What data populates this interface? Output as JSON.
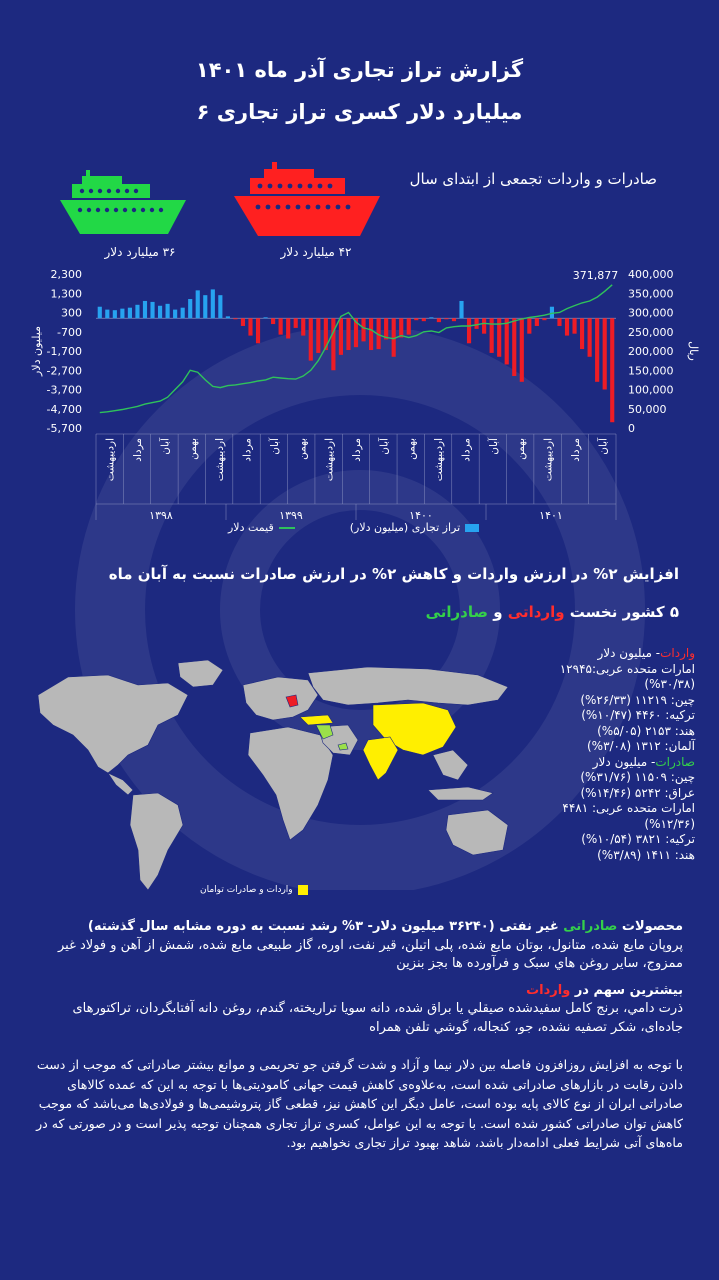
{
  "header": {
    "title": "گزارش تراز تجاری آذر ماه ۱۴۰۱",
    "subtitle": "۶ میلیارد دلار کسری تراز تجاری"
  },
  "cumulative": {
    "title": "صادرات و واردات تجمعی از ابتدای سال",
    "import_label": "۴۲ میلیارد دلار",
    "export_label": "۳۶ میلیارد دلار",
    "import_color": "#ff2020",
    "export_color": "#22d846"
  },
  "chart_data": {
    "type": "bar",
    "left_ylabel": "میلیون دلار",
    "right_ylabel": "ریال",
    "left_ticks": [
      "2,300",
      "1,300",
      "300",
      "-700",
      "-1,700",
      "-2,700",
      "-3,700",
      "-4,700",
      "-5,700"
    ],
    "left_ylim": [
      -5700,
      2300
    ],
    "right_ticks": [
      "400,000",
      "350,000",
      "300,000",
      "250,000",
      "200,000",
      "150,000",
      "100,000",
      "50,000",
      "0"
    ],
    "right_ylim": [
      0,
      400000
    ],
    "last_dollar_label": "371,877",
    "series": [
      {
        "name": "تراز تجاری (میلیون دلار)",
        "type": "bar",
        "color_positive": "#27a3f0",
        "color_negative": "#ee1c25",
        "values": [
          600,
          450,
          420,
          500,
          550,
          700,
          900,
          850,
          650,
          750,
          450,
          550,
          1000,
          1450,
          1200,
          1500,
          1200,
          100,
          -50,
          -400,
          -900,
          -1300,
          50,
          -300,
          -850,
          -1050,
          -500,
          -900,
          -2200,
          -1800,
          -1650,
          -2700,
          -1900,
          -1650,
          -1500,
          -1200,
          -1650,
          -1600,
          -1100,
          -2000,
          -1000,
          -850,
          -100,
          -150,
          50,
          -200,
          -50,
          -150,
          900,
          -1300,
          -550,
          -800,
          -1800,
          -2000,
          -2400,
          -3000,
          -3300,
          -800,
          -400,
          -100,
          600,
          -400,
          -900,
          -800,
          -1600,
          -2000,
          -3300,
          -3700,
          -5400
        ]
      },
      {
        "name": "قیمت دلار",
        "type": "line",
        "color": "#2fc25b",
        "values": [
          40000,
          42000,
          45000,
          48000,
          52000,
          56000,
          62000,
          66000,
          70000,
          80000,
          100000,
          120000,
          150000,
          145000,
          125000,
          108000,
          105000,
          110000,
          112000,
          115000,
          118000,
          122000,
          125000,
          132000,
          130000,
          128000,
          127000,
          135000,
          150000,
          175000,
          210000,
          250000,
          290000,
          300000,
          275000,
          260000,
          255000,
          242000,
          235000,
          232000,
          240000,
          235000,
          240000,
          250000,
          252000,
          248000,
          260000,
          263000,
          265000,
          265000,
          268000,
          272000,
          270000,
          270000,
          272000,
          278000,
          283000,
          287000,
          290000,
          293000,
          298000,
          300000,
          310000,
          318000,
          325000,
          330000,
          340000,
          355000,
          372000
        ]
      }
    ],
    "month_labels": [
      "اردیبهشت",
      "مرداد",
      "آبان",
      "بهمن",
      "اردیبهشت",
      "مرداد",
      "آبان",
      "بهمن",
      "اردیبهشت",
      "مرداد",
      "آبان",
      "بهمن",
      "اردیبهشت",
      "مرداد",
      "آبان",
      "بهمن",
      "اردیبهشت",
      "مرداد",
      "آبان"
    ],
    "year_labels": [
      "۱۳۹۸",
      "۱۳۹۹",
      "۱۴۰۰",
      "۱۴۰۱"
    ],
    "legend": {
      "bar_label": "تراز تجاری (میلیون دلار)",
      "line_label": "قیمت دلار"
    }
  },
  "heading2": "افزایش ۲% در ارزش واردات و کاهش ۲% در ارزش صادرات نسبت به آبان ماه",
  "top5": {
    "prefix": "۵ کشور نخست",
    "import_word": "وارداتی",
    "and": "و",
    "export_word": "صادراتی"
  },
  "countries": {
    "imports_title": "واردات",
    "imports_unit": "- میلیون دلار",
    "imports": [
      "امارات متحده عربی:۱۲۹۴۵ (۳۰/۳۸%)",
      "چین: ۱۱۲۱۹ (۲۶/۳۳%)",
      "ترکیه: ۴۴۶۰ (۱۰/۴۷%)",
      "هند: ۲۱۵۳ (۵/۰۵%)",
      "آلمان: ۱۳۱۲ (۳/۰۸%)"
    ],
    "exports_title": "صادرات",
    "exports_unit": "- میلیون دلار",
    "exports": [
      "چین: ۱۱۵۰۹ (۳۱/۷۶%)",
      "عراق: ۵۲۴۲ (۱۴/۴۶%)",
      "امارات متحده عربی: ۴۴۸۱ (۱۲/۳۶%)",
      "ترکیه: ۳۸۲۱ (۱۰/۵۴%)",
      "هند: ۱۴۱۱ (۳/۸۹%)"
    ],
    "map_legend": "واردات و صادرات توامان"
  },
  "products": {
    "export_title_pre": "محصولات",
    "export_title_word": "صادراتی",
    "export_title_post": "غیر نفتی (۳۶۲۴۰ میلیون دلار- ۳% رشد نسبت به دوره مشابه سال گذشته)",
    "export_items": "پروپان مایع شده، متانول، بوتان مایع شده، پلی اتیلن، قیر نفت، اوره، گاز طبیعی مایع شده، شمش از آهن و فولاد غیر ممزوج، سایر روغن هاي سبک و فرآورده ها بجز بنزین",
    "import_title_pre": "بیشترین سهم در",
    "import_title_word": "واردات",
    "import_items": "ذرت دامي، برنج كامل سفيدشده صيقلي يا براق شده، دانه سويا تراريخته، گندم، روغن دانه آفتابگردان، تراكتورهای جاده‌ای، شكر تصفيه نشده، جو، كنجاله، گوشي تلفن همراه"
  },
  "paragraph": "با توجه به افزایش روزافزون فاصله بین دلار نیما و آزاد و شدت گرفتن جو تحریمی و موانع بیشتر صادراتی که موجب از دست دادن رقابت در بازارهای صادراتی شده است، به‌علاوه‌ی کاهش قیمت جهانی کامودیتی‌ها با توجه به این که عمده کالاهای صادراتی ایران از نوع کالای پایه بوده است، عامل دیگر این کاهش نیز، قطعی گاز پتروشیمی‌ها و فولادی‌ها می‌باشد که موجب کاهش توان صادراتی کشور شده است. با توجه به این عوامل، کسری تراز تجاری همچنان توجیه پذیر است و در صورتی که در ماه‌های آتی شرایط فعلی ادامه‌دار باشد، شاهد بهبود تراز تجاری نخواهیم بود."
}
